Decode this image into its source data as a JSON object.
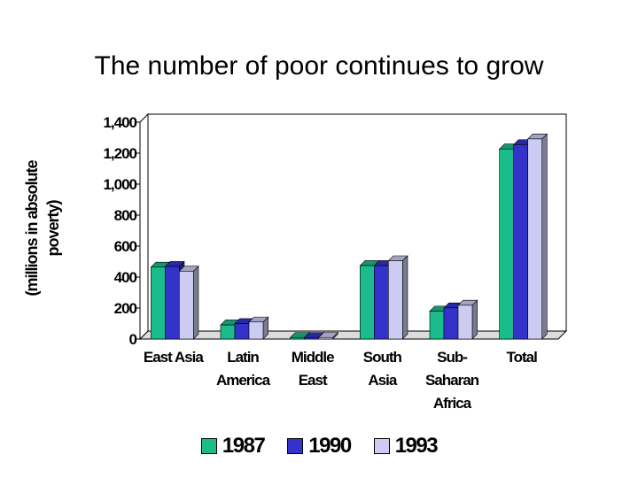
{
  "title": "The number of poor continues to grow",
  "chart_data": {
    "type": "bar",
    "ylabel": "(millions in absolute poverty)",
    "ylabel_lines": [
      "(millions in absolute",
      "poverty)"
    ],
    "ylim": [
      0,
      1400
    ],
    "yticks": [
      0,
      200,
      400,
      600,
      800,
      1000,
      1200,
      1400
    ],
    "ytick_labels": [
      "0",
      "200",
      "400",
      "600",
      "800",
      "1,000",
      "1,200",
      "1,400"
    ],
    "categories": [
      "East Asia",
      "Latin America",
      "Middle East",
      "South Asia",
      "Sub-Saharan Africa",
      "Total"
    ],
    "category_lines": [
      [
        "East Asia"
      ],
      [
        "Latin",
        "America"
      ],
      [
        "Middle",
        "East"
      ],
      [
        "South",
        "Asia"
      ],
      [
        "Sub-",
        "Saharan",
        "Africa"
      ],
      [
        "Total"
      ]
    ],
    "series": [
      {
        "name": "1987",
        "color": "#1abc8c",
        "values": [
          464,
          91,
          10,
          474,
          180,
          1227
        ]
      },
      {
        "name": "1990",
        "color": "#3333cc",
        "values": [
          468,
          100,
          10,
          474,
          201,
          1255
        ]
      },
      {
        "name": "1993",
        "color": "#ccccf2",
        "values": [
          438,
          110,
          10,
          505,
          218,
          1292
        ]
      }
    ],
    "grid": false,
    "legend_position": "bottom"
  }
}
